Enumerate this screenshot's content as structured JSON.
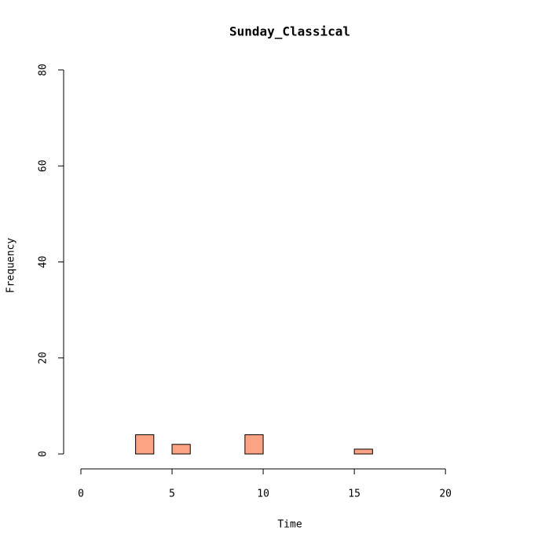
{
  "chart_data": {
    "type": "histogram",
    "title": "Sunday_Classical",
    "x_label": "Time",
    "y_label": "Frequency",
    "bins": [
      0,
      1,
      2,
      3,
      4,
      5,
      6,
      7,
      8,
      9,
      10,
      11,
      12,
      13,
      14,
      15,
      16,
      17,
      18,
      19,
      20,
      21,
      22,
      23,
      24
    ],
    "values": [
      0,
      0,
      0,
      4,
      0,
      2,
      0,
      0,
      0,
      4,
      0,
      0,
      0,
      0,
      0,
      1,
      0,
      0,
      0,
      0,
      0,
      0,
      0,
      0
    ],
    "color": "#fca383",
    "xlim": [
      0,
      24
    ],
    "xticks": [
      0,
      5,
      10,
      15,
      20
    ],
    "ylim": [
      0,
      80
    ],
    "yticks": [
      0,
      20,
      40,
      60,
      80
    ]
  }
}
